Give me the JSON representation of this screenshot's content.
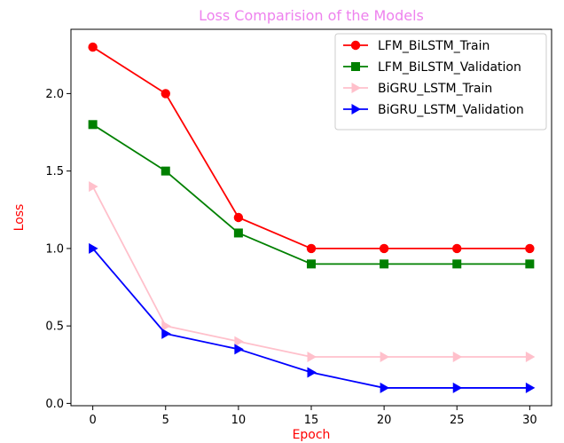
{
  "chart_data": {
    "type": "line",
    "title": "Loss Comparision of the Models",
    "title_color": "#ee82ee",
    "xlabel": "Epoch",
    "ylabel": "Loss",
    "axis_label_color": "#ff0000",
    "x": [
      0,
      5,
      10,
      15,
      20,
      25,
      30
    ],
    "xlim": [
      -1.5,
      31.5
    ],
    "ylim": [
      -0.015,
      2.415
    ],
    "xticks": [
      0,
      5,
      10,
      15,
      20,
      25,
      30
    ],
    "yticks": [
      0.0,
      0.5,
      1.0,
      1.5,
      2.0
    ],
    "ytick_labels": [
      "0.0",
      "0.5",
      "1.0",
      "1.5",
      "2.0"
    ],
    "grid": false,
    "legend_position": "upper right",
    "series": [
      {
        "name": "LFM_BiLSTM_Train",
        "values": [
          2.3,
          2.0,
          1.2,
          1.0,
          1.0,
          1.0,
          1.0
        ],
        "color": "#ff0000",
        "marker": "circle"
      },
      {
        "name": "LFM_BiLSTM_Validation",
        "values": [
          1.8,
          1.5,
          1.1,
          0.9,
          0.9,
          0.9,
          0.9
        ],
        "color": "#008000",
        "marker": "square"
      },
      {
        "name": "BiGRU_LSTM_Train",
        "values": [
          1.4,
          0.5,
          0.4,
          0.3,
          0.3,
          0.3,
          0.3
        ],
        "color": "#ffc0cb",
        "marker": "triangle-right"
      },
      {
        "name": "BiGRU_LSTM_Validation",
        "values": [
          1.0,
          0.45,
          0.35,
          0.2,
          0.1,
          0.1,
          0.1
        ],
        "color": "#0000ff",
        "marker": "triangle-right"
      }
    ]
  }
}
